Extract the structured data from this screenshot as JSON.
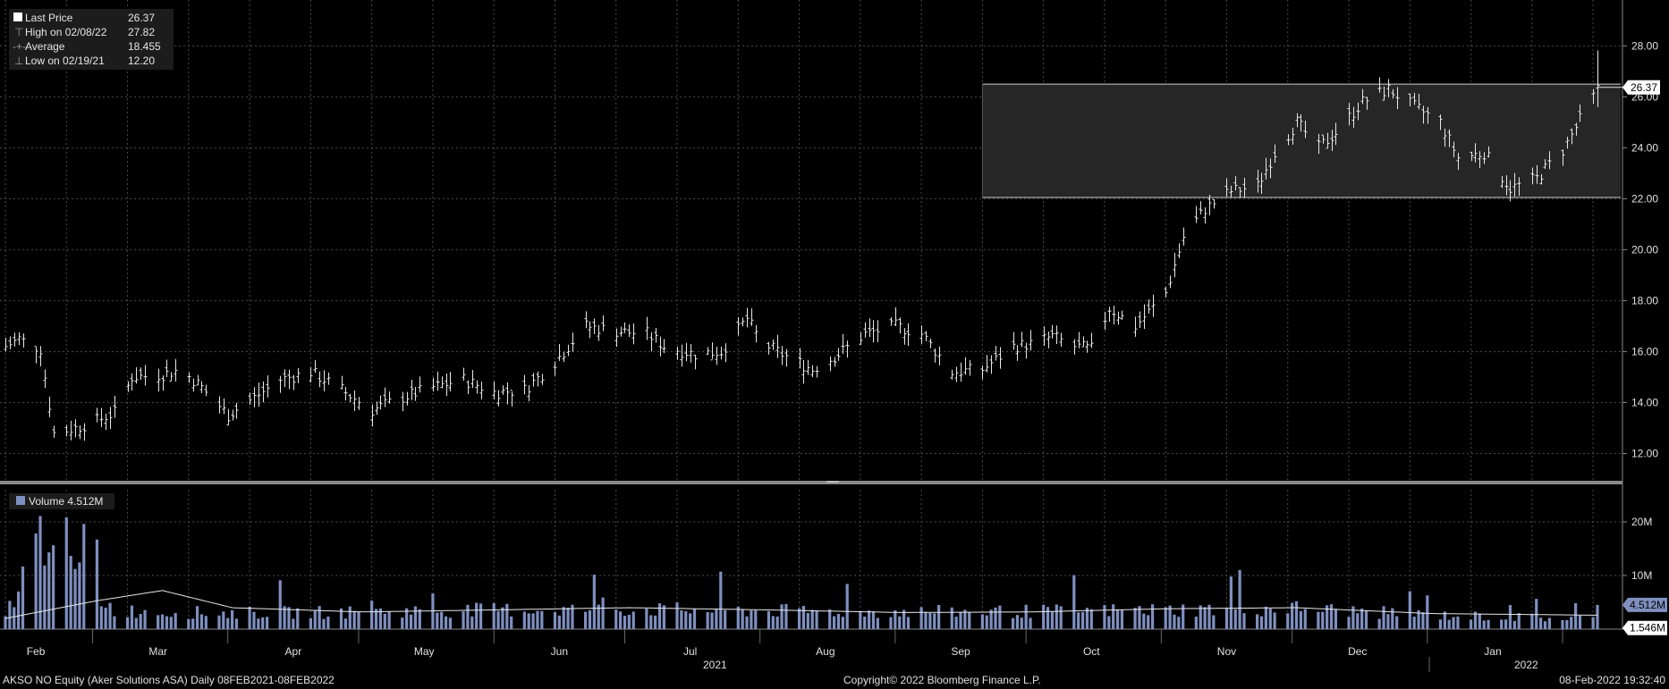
{
  "chart_data": {
    "type": "bar",
    "subtype": "ohlc",
    "legend": {
      "last_price_label": "Last Price",
      "last_price_value": "26.37",
      "high_label": "High on 02/08/22",
      "high_value": "27.82",
      "average_label": "Average",
      "average_value": "18.455",
      "low_label": "Low on 02/19/21",
      "low_value": "12.20"
    },
    "price_axis": {
      "range": [
        11,
        29.8
      ],
      "ticks": [
        "12.00",
        "14.00",
        "16.00",
        "18.00",
        "20.00",
        "22.00",
        "24.00",
        "26.00",
        "28.00"
      ]
    },
    "last_price_tag": "26.37",
    "channel": {
      "upper": 26.5,
      "lower": 22.05,
      "start": "2021-09-20",
      "end": "2022-02-08"
    },
    "volume_legend": "Volume 4.512M",
    "volume_axis": {
      "range": [
        0,
        26
      ],
      "ticks": [
        "20M",
        "10M",
        "0"
      ]
    },
    "volume_last_tag": "4.512M",
    "volume_ma_tag": "1.546M",
    "x_months": [
      "Feb",
      "Mar",
      "Apr",
      "May",
      "Jun",
      "Jul",
      "Aug",
      "Sep",
      "Oct",
      "Nov",
      "Dec",
      "Jan"
    ],
    "x_years": [
      "2021",
      "2022"
    ],
    "price_anchors": [
      [
        "2021-02-08",
        16.2
      ],
      [
        "2021-02-11",
        16.5
      ],
      [
        "2021-02-16",
        16.1
      ],
      [
        "2021-02-19",
        12.8
      ],
      [
        "2021-02-24",
        13.0
      ],
      [
        "2021-03-01",
        13.3
      ],
      [
        "2021-03-05",
        13.6
      ],
      [
        "2021-03-09",
        15.0
      ],
      [
        "2021-03-16",
        15.1
      ],
      [
        "2021-03-20",
        15.3
      ],
      [
        "2021-03-25",
        14.6
      ],
      [
        "2021-03-31",
        13.5
      ],
      [
        "2021-04-06",
        14.2
      ],
      [
        "2021-04-12",
        14.9
      ],
      [
        "2021-04-19",
        15.2
      ],
      [
        "2021-04-26",
        14.5
      ],
      [
        "2021-05-03",
        13.7
      ],
      [
        "2021-05-10",
        14.2
      ],
      [
        "2021-05-17",
        14.6
      ],
      [
        "2021-05-24",
        14.9
      ],
      [
        "2021-05-31",
        14.4
      ],
      [
        "2021-06-07",
        14.5
      ],
      [
        "2021-06-14",
        15.6
      ],
      [
        "2021-06-21",
        17.0
      ],
      [
        "2021-06-28",
        16.8
      ],
      [
        "2021-07-05",
        16.7
      ],
      [
        "2021-07-09",
        16.2
      ],
      [
        "2021-07-16",
        15.9
      ],
      [
        "2021-07-22",
        16.0
      ],
      [
        "2021-07-28",
        17.3
      ],
      [
        "2021-07-31",
        16.4
      ],
      [
        "2021-08-05",
        15.9
      ],
      [
        "2021-08-12",
        15.3
      ],
      [
        "2021-08-18",
        15.9
      ],
      [
        "2021-08-24",
        16.7
      ],
      [
        "2021-08-31",
        17.0
      ],
      [
        "2021-09-06",
        16.7
      ],
      [
        "2021-09-13",
        15.2
      ],
      [
        "2021-09-20",
        15.3
      ],
      [
        "2021-09-27",
        16.2
      ],
      [
        "2021-10-01",
        16.3
      ],
      [
        "2021-10-06",
        16.6
      ],
      [
        "2021-10-11",
        16.2
      ],
      [
        "2021-10-15",
        16.1
      ],
      [
        "2021-10-19",
        17.7
      ],
      [
        "2021-10-25",
        17.0
      ],
      [
        "2021-11-01",
        18.3
      ],
      [
        "2021-11-05",
        20.5
      ],
      [
        "2021-11-10",
        21.6
      ],
      [
        "2021-11-16",
        22.3
      ],
      [
        "2021-11-22",
        22.5
      ],
      [
        "2021-11-26",
        23.8
      ],
      [
        "2021-12-01",
        25.0
      ],
      [
        "2021-12-06",
        24.0
      ],
      [
        "2021-12-10",
        24.6
      ],
      [
        "2021-12-16",
        25.8
      ],
      [
        "2021-12-22",
        26.3
      ],
      [
        "2021-12-28",
        25.6
      ],
      [
        "2022-01-03",
        25.0
      ],
      [
        "2022-01-07",
        23.6
      ],
      [
        "2022-01-13",
        23.8
      ],
      [
        "2022-01-19",
        22.4
      ],
      [
        "2022-01-25",
        22.8
      ],
      [
        "2022-01-31",
        23.9
      ],
      [
        "2022-02-08",
        26.3
      ]
    ],
    "volume_anchors": [
      [
        "2021-02-08",
        2.5
      ],
      [
        "2021-02-19",
        22.5
      ],
      [
        "2021-02-24",
        10.0
      ],
      [
        "2021-03-05",
        3.5
      ],
      [
        "2021-03-16",
        3.2
      ],
      [
        "2021-04-01",
        3.0
      ],
      [
        "2021-05-01",
        3.2
      ],
      [
        "2021-06-01",
        3.6
      ],
      [
        "2021-07-01",
        3.7
      ],
      [
        "2021-08-01",
        3.4
      ],
      [
        "2021-09-01",
        3.2
      ],
      [
        "2021-10-01",
        3.3
      ],
      [
        "2021-11-01",
        3.6
      ],
      [
        "2021-12-01",
        3.9
      ],
      [
        "2022-01-01",
        2.6
      ],
      [
        "2022-02-01",
        2.0
      ],
      [
        "2022-02-07",
        2.0
      ],
      [
        "2022-02-08",
        5.0
      ]
    ],
    "volume_ma_anchors": [
      [
        "2021-02-08",
        2.0
      ],
      [
        "2021-03-01",
        5.3
      ],
      [
        "2021-03-16",
        7.2
      ],
      [
        "2021-04-01",
        4.0
      ],
      [
        "2021-05-01",
        3.2
      ],
      [
        "2021-06-01",
        3.6
      ],
      [
        "2021-07-01",
        4.0
      ],
      [
        "2021-08-01",
        3.6
      ],
      [
        "2021-09-01",
        3.1
      ],
      [
        "2021-10-01",
        3.2
      ],
      [
        "2021-11-01",
        3.8
      ],
      [
        "2021-12-01",
        4.0
      ],
      [
        "2022-01-01",
        2.9
      ],
      [
        "2022-02-08",
        2.6
      ]
    ]
  },
  "footer": {
    "ticker": "AKSO NO Equity (Aker Solutions ASA)  Daily 08FEB2021-08FEB2022",
    "copyright": "Copyright© 2022 Bloomberg Finance L.P.",
    "timestamp": "08-Feb-2022 19:32:40"
  },
  "colors": {
    "background": "#000000",
    "price_bar": "#e8e8e8",
    "volume_bar": "#7f8fbf",
    "channel": "#2a2a2a",
    "grid": "#5a5a5a"
  }
}
